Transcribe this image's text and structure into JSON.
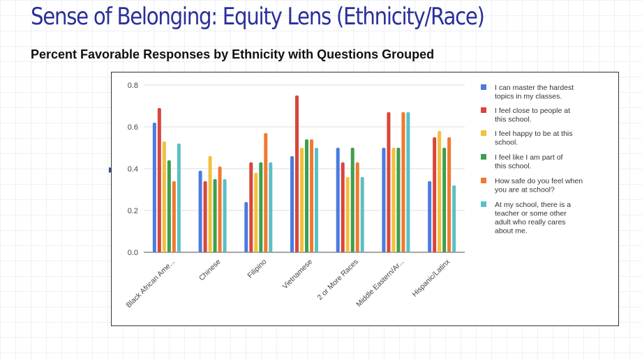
{
  "slide": {
    "title": "Sense of Belonging: Equity Lens (Ethnicity/Race)",
    "subtitle": "Percent Favorable Responses by Ethnicity with Questions Grouped"
  },
  "chart_data": {
    "type": "bar",
    "title": "",
    "xlabel": "",
    "ylabel": "",
    "ylim": [
      0,
      0.8
    ],
    "yticks": [
      "0.0",
      "0.2",
      "0.4",
      "0.6",
      "0.8"
    ],
    "grid": true,
    "legend_position": "right",
    "categories": [
      "Black African Ame...",
      "Chinese",
      "Filipino",
      "Vietnamese",
      "2 or More Races",
      "Middle Eastern/Ar...",
      "Hispanic/Latinx"
    ],
    "series": [
      {
        "name": "I can master the hardest topics in my classes.",
        "color": "#4a7be0",
        "values": [
          0.62,
          0.39,
          0.24,
          0.46,
          0.5,
          0.5,
          0.34
        ]
      },
      {
        "name": "I feel close to people at this school.",
        "color": "#d8463b",
        "values": [
          0.69,
          0.34,
          0.43,
          0.75,
          0.43,
          0.67,
          0.55
        ]
      },
      {
        "name": "I feel happy to be at this school.",
        "color": "#f2c03c",
        "values": [
          0.53,
          0.46,
          0.38,
          0.5,
          0.36,
          0.5,
          0.58
        ]
      },
      {
        "name": "I feel like I am part of this school.",
        "color": "#3f9e4f",
        "values": [
          0.44,
          0.35,
          0.43,
          0.54,
          0.5,
          0.5,
          0.5
        ]
      },
      {
        "name": "How safe do you feel when you are at school?",
        "color": "#ef7a2e",
        "values": [
          0.34,
          0.41,
          0.57,
          0.54,
          0.43,
          0.67,
          0.55
        ]
      },
      {
        "name": "At my school, there is a teacher or some other adult who really cares about me.",
        "color": "#5bbfc6",
        "values": [
          0.52,
          0.35,
          0.43,
          0.5,
          0.36,
          0.67,
          0.32
        ]
      }
    ]
  }
}
